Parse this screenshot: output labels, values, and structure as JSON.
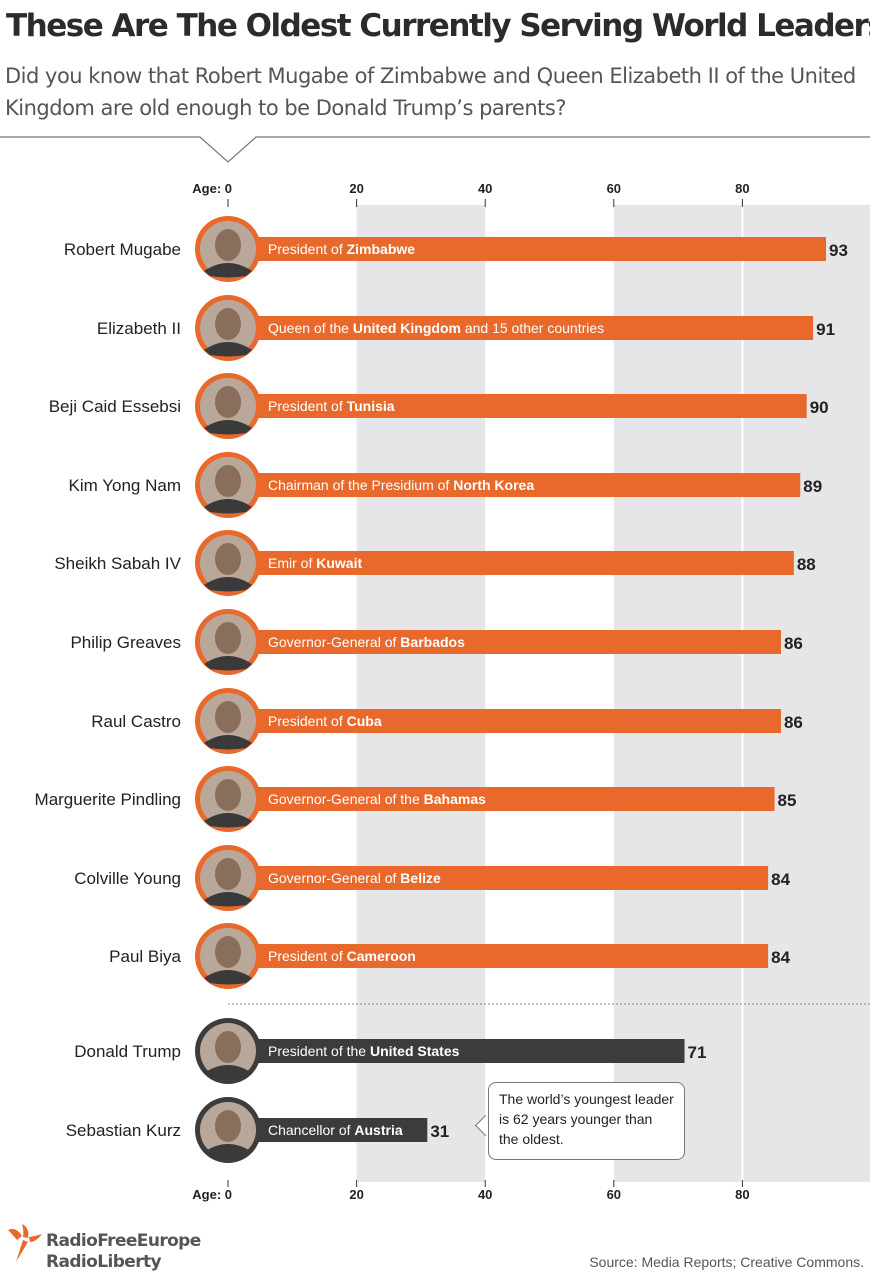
{
  "title": "These Are The Oldest Currently Serving World Leaders",
  "subtitle": "Did you know that Robert Mugabe of Zimbabwe and Queen Elizabeth II of the United Kingdom are old enough to be Donald Trump’s parents?",
  "source": "Source: Media Reports; Creative Commons.",
  "logo": {
    "line1": "RadioFreeEurope",
    "line2": "RadioLiberty"
  },
  "callout": "The world’s youngest leader is 62 years younger than the oldest.",
  "colors": {
    "accent": "#e8692b",
    "dark": "#3c3c3c",
    "band": "#e6e6e9"
  },
  "chart_data": {
    "type": "bar",
    "orientation": "horizontal",
    "axis_label": "Age:",
    "ticks": [
      0,
      20,
      40,
      60,
      80
    ],
    "xlim": [
      0,
      100
    ],
    "grid": "alternating vertical bands",
    "rows": [
      {
        "name": "Robert Mugabe",
        "value": 93,
        "desc_prefix": "President of ",
        "desc_bold": "Zimbabwe",
        "desc_suffix": "",
        "group": "oldest"
      },
      {
        "name": "Elizabeth II",
        "value": 91,
        "desc_prefix": "Queen of the ",
        "desc_bold": "United Kingdom",
        "desc_suffix": " and 15 other countries",
        "group": "oldest"
      },
      {
        "name": "Beji Caid Essebsi",
        "value": 90,
        "desc_prefix": "President of ",
        "desc_bold": "Tunisia",
        "desc_suffix": "",
        "group": "oldest"
      },
      {
        "name": "Kim Yong Nam",
        "value": 89,
        "desc_prefix": "Chairman of the Presidium of ",
        "desc_bold": "North Korea",
        "desc_suffix": "",
        "group": "oldest"
      },
      {
        "name": "Sheikh Sabah IV",
        "value": 88,
        "desc_prefix": "Emir of ",
        "desc_bold": "Kuwait",
        "desc_suffix": "",
        "group": "oldest"
      },
      {
        "name": "Philip Greaves",
        "value": 86,
        "desc_prefix": "Governor-General of ",
        "desc_bold": "Barbados",
        "desc_suffix": "",
        "group": "oldest"
      },
      {
        "name": "Raul Castro",
        "value": 86,
        "desc_prefix": "President of ",
        "desc_bold": "Cuba",
        "desc_suffix": "",
        "group": "oldest"
      },
      {
        "name": "Marguerite Pindling",
        "value": 85,
        "desc_prefix": "Governor-General of the ",
        "desc_bold": "Bahamas",
        "desc_suffix": "",
        "group": "oldest"
      },
      {
        "name": "Colville Young",
        "value": 84,
        "desc_prefix": "Governor-General of ",
        "desc_bold": "Belize",
        "desc_suffix": "",
        "group": "oldest"
      },
      {
        "name": "Paul Biya",
        "value": 84,
        "desc_prefix": "President of ",
        "desc_bold": "Cameroon",
        "desc_suffix": "",
        "group": "oldest"
      },
      {
        "name": "Donald Trump",
        "value": 71,
        "desc_prefix": "President of the ",
        "desc_bold": "United States",
        "desc_suffix": "",
        "group": "comparison"
      },
      {
        "name": "Sebastian Kurz",
        "value": 31,
        "desc_prefix": "Chancellor of ",
        "desc_bold": "Austria",
        "desc_suffix": "",
        "group": "comparison"
      }
    ]
  }
}
